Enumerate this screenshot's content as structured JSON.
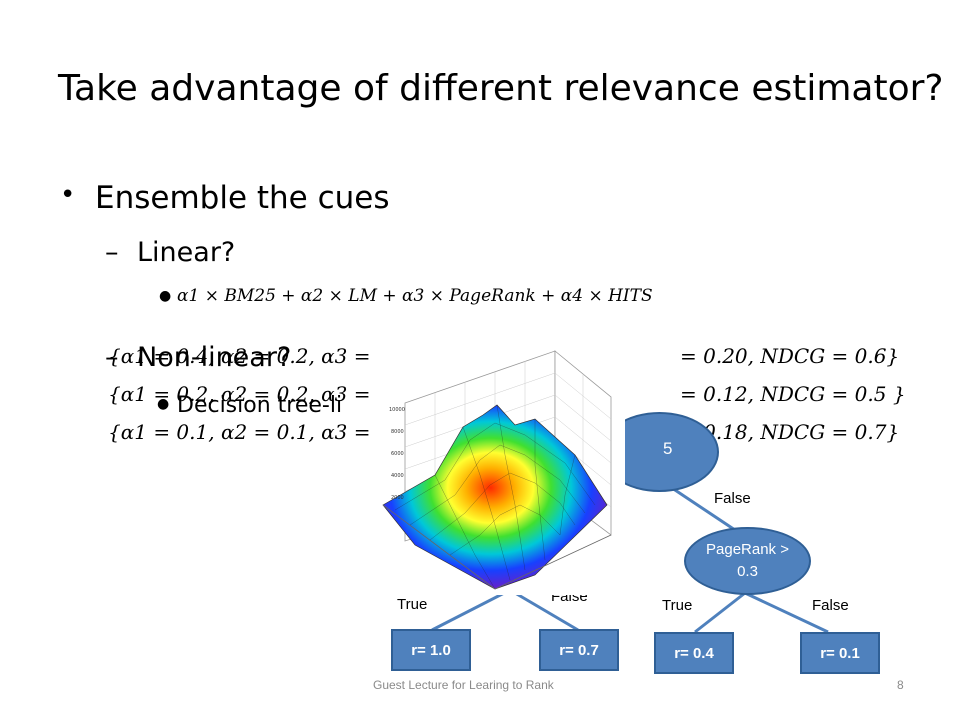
{
  "slide": {
    "title": "Take advantage of different relevance estimator?",
    "bullet1": "Ensemble the cues",
    "sub_linear": "Linear?",
    "formula": "α1 × BM25 + α2 × LM + α3 × PageRank + α4 × HITS",
    "rows": [
      "{α1 = 0.4, α2 = 0.2, α3 =",
      "= 0.20, NDCG = 0.6}",
      "{α1 = 0.2, α2 = 0.2, α3 =",
      "= 0.12, NDCG = 0.5 }",
      "{α1 = 0.1, α2 = 0.1, α3 =",
      "= 0.18, NDCG = 0.7}"
    ],
    "sub_nonlinear": "Non-linear?",
    "decision_tree": "Decision tree-li",
    "footer": "Guest Lecture for Learing to Rank",
    "page_number": "8"
  },
  "tree": {
    "root_partial": "5",
    "node2": "PageRank > 0.3",
    "false_top": "False",
    "true_left": "True",
    "false_left": "False",
    "true_right": "True",
    "false_right": "False",
    "leaves": [
      "r= 1.0",
      "r= 0.7",
      "r= 0.4",
      "r= 0.1"
    ]
  },
  "colors": {
    "node_fill": "#4f81bd",
    "node_border": "#2f5f95",
    "edge": "#4f81bd"
  }
}
